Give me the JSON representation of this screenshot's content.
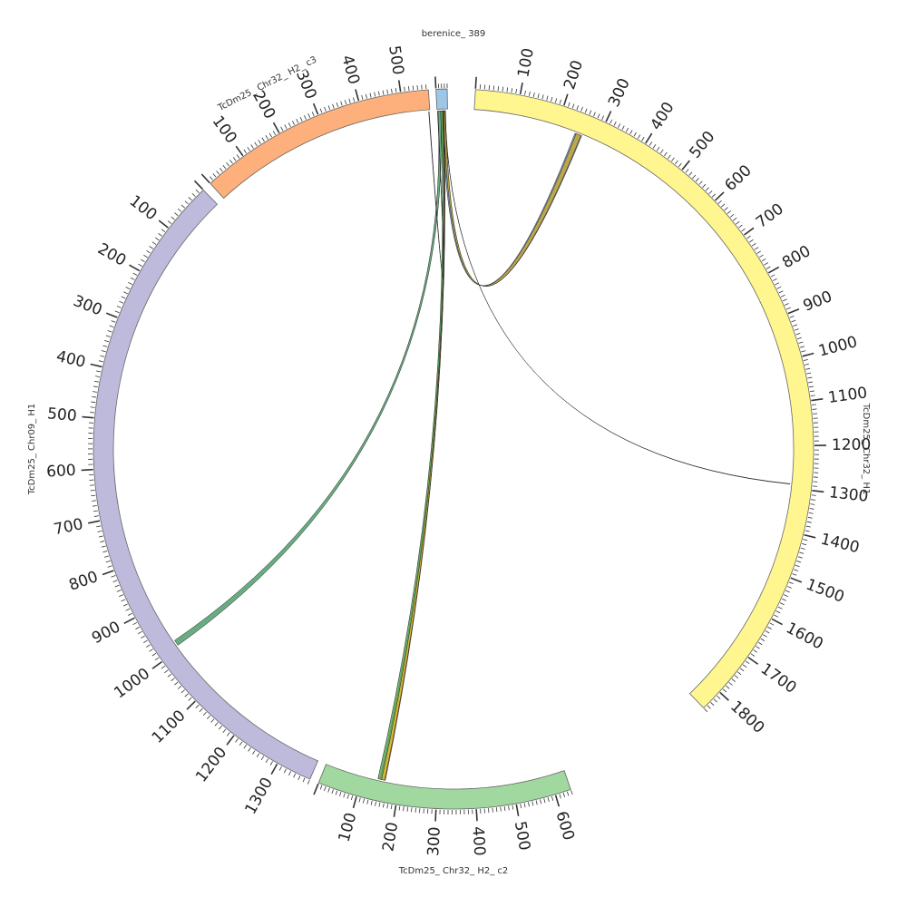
{
  "diagram": {
    "type": "circos",
    "segments": [
      {
        "name": "TcDm25_Chr32_H1",
        "label": "TcDm25_ Chr32_ H1",
        "color": "#fff68f",
        "length": 1850,
        "orientation": "clockwise",
        "tick_labels": [
          100,
          200,
          300,
          400,
          500,
          600,
          700,
          800,
          900,
          1000,
          1100,
          1200,
          1300,
          1400,
          1500,
          1600,
          1700,
          1800
        ]
      },
      {
        "name": "TcDm25_Chr32_H2_c2",
        "label": "TcDm25_ Chr32_ H2_ c2",
        "color": "#a0d8a0",
        "length": 640,
        "orientation": "counterclockwise",
        "tick_labels": [
          100,
          200,
          300,
          400,
          500,
          600
        ]
      },
      {
        "name": "TcDm25_Chr09_H1",
        "label": "TcDm25_ Chr09_ H1",
        "color": "#bebadc",
        "length": 1370,
        "orientation": "counterclockwise",
        "tick_labels": [
          100,
          200,
          300,
          400,
          500,
          600,
          700,
          800,
          900,
          1000,
          1100,
          1200,
          1300
        ]
      },
      {
        "name": "TcDm25_Chr32_H2_c3",
        "label": "TcDm25_ Chr32_ H2_ c3",
        "color": "#fdb07c",
        "length": 565,
        "orientation": "clockwise",
        "tick_labels": [
          100,
          200,
          300,
          400,
          500
        ]
      },
      {
        "name": "berenice_389",
        "label": "berenice_ 389",
        "color": "#9ec6e6",
        "length": 40,
        "orientation": "clockwise",
        "tick_labels": []
      }
    ],
    "links": [
      {
        "from": "berenice_389",
        "from_range": [
          18,
          30
        ],
        "to": "TcDm25_Chr32_H1",
        "to_range": [
          245,
          262
        ],
        "color": "#6e94cc"
      },
      {
        "from": "berenice_389",
        "from_range": [
          24,
          32
        ],
        "to": "TcDm25_Chr32_H1",
        "to_range": [
          248,
          260
        ],
        "color": "#c8a830"
      },
      {
        "from": "berenice_389",
        "from_range": [
          4,
          14
        ],
        "to": "TcDm25_Chr09_H1",
        "to_range": [
          980,
          992
        ],
        "color": "#4f9e6c"
      },
      {
        "from": "berenice_389",
        "from_range": [
          18,
          26
        ],
        "to": "TcDm25_Chr32_H2_c2",
        "to_range": [
          148,
          162
        ],
        "color": "#e07c2a"
      },
      {
        "from": "berenice_389",
        "from_range": [
          14,
          22
        ],
        "to": "TcDm25_Chr32_H2_c2",
        "to_range": [
          142,
          156
        ],
        "color": "#5aa85a"
      },
      {
        "from": "berenice_389",
        "from_range": [
          22,
          24
        ],
        "to": "TcDm25_Chr32_H2_c2",
        "to_range": [
          152,
          160
        ],
        "color": "#e8c830"
      },
      {
        "from": "berenice_389",
        "from_range": [
          30,
          31
        ],
        "to": "TcDm25_Chr32_H1",
        "to_range": [
          1290,
          1291
        ],
        "color": "#7a2a20"
      },
      {
        "from": "berenice_389",
        "from_range": [
          2,
          3
        ],
        "to": "TcDm25_Chr32_H2_c3",
        "to_range": [
          562,
          563
        ],
        "color": "#222222"
      }
    ]
  }
}
